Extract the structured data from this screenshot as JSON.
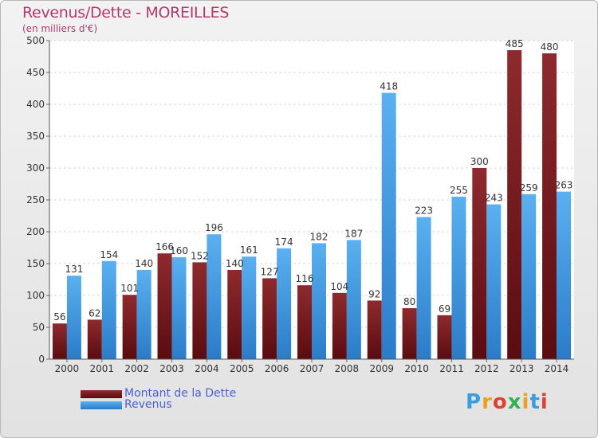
{
  "chart_data": {
    "type": "bar",
    "title": "Revenus/Dette - MOREILLES",
    "subtitle": "(en milliers d'€)",
    "categories": [
      "2000",
      "2001",
      "2002",
      "2003",
      "2004",
      "2005",
      "2006",
      "2007",
      "2008",
      "2009",
      "2010",
      "2011",
      "2012",
      "2013",
      "2014"
    ],
    "series": [
      {
        "name": "Montant de la Dette",
        "color": "#7a1a1f",
        "values": [
          56,
          62,
          101,
          166,
          152,
          140,
          127,
          116,
          104,
          92,
          80,
          69,
          300,
          485,
          480
        ]
      },
      {
        "name": "Revenus",
        "color": "#3d9be6",
        "values": [
          131,
          154,
          140,
          160,
          196,
          161,
          174,
          182,
          187,
          418,
          223,
          255,
          243,
          259,
          263
        ]
      }
    ],
    "yticks": [
      0,
      50,
      100,
      150,
      200,
      250,
      300,
      350,
      400,
      450,
      500
    ],
    "ylim": [
      0,
      500
    ],
    "grid": true,
    "legend_position": "bottom-left"
  },
  "logo": {
    "letters": [
      "P",
      "r",
      "o",
      "x",
      "i",
      "t",
      "i"
    ],
    "colors": [
      "#3a9de0",
      "#f0a020",
      "#e04030",
      "#30b050",
      "#f0a020",
      "#3a9de0",
      "#e04030"
    ]
  }
}
